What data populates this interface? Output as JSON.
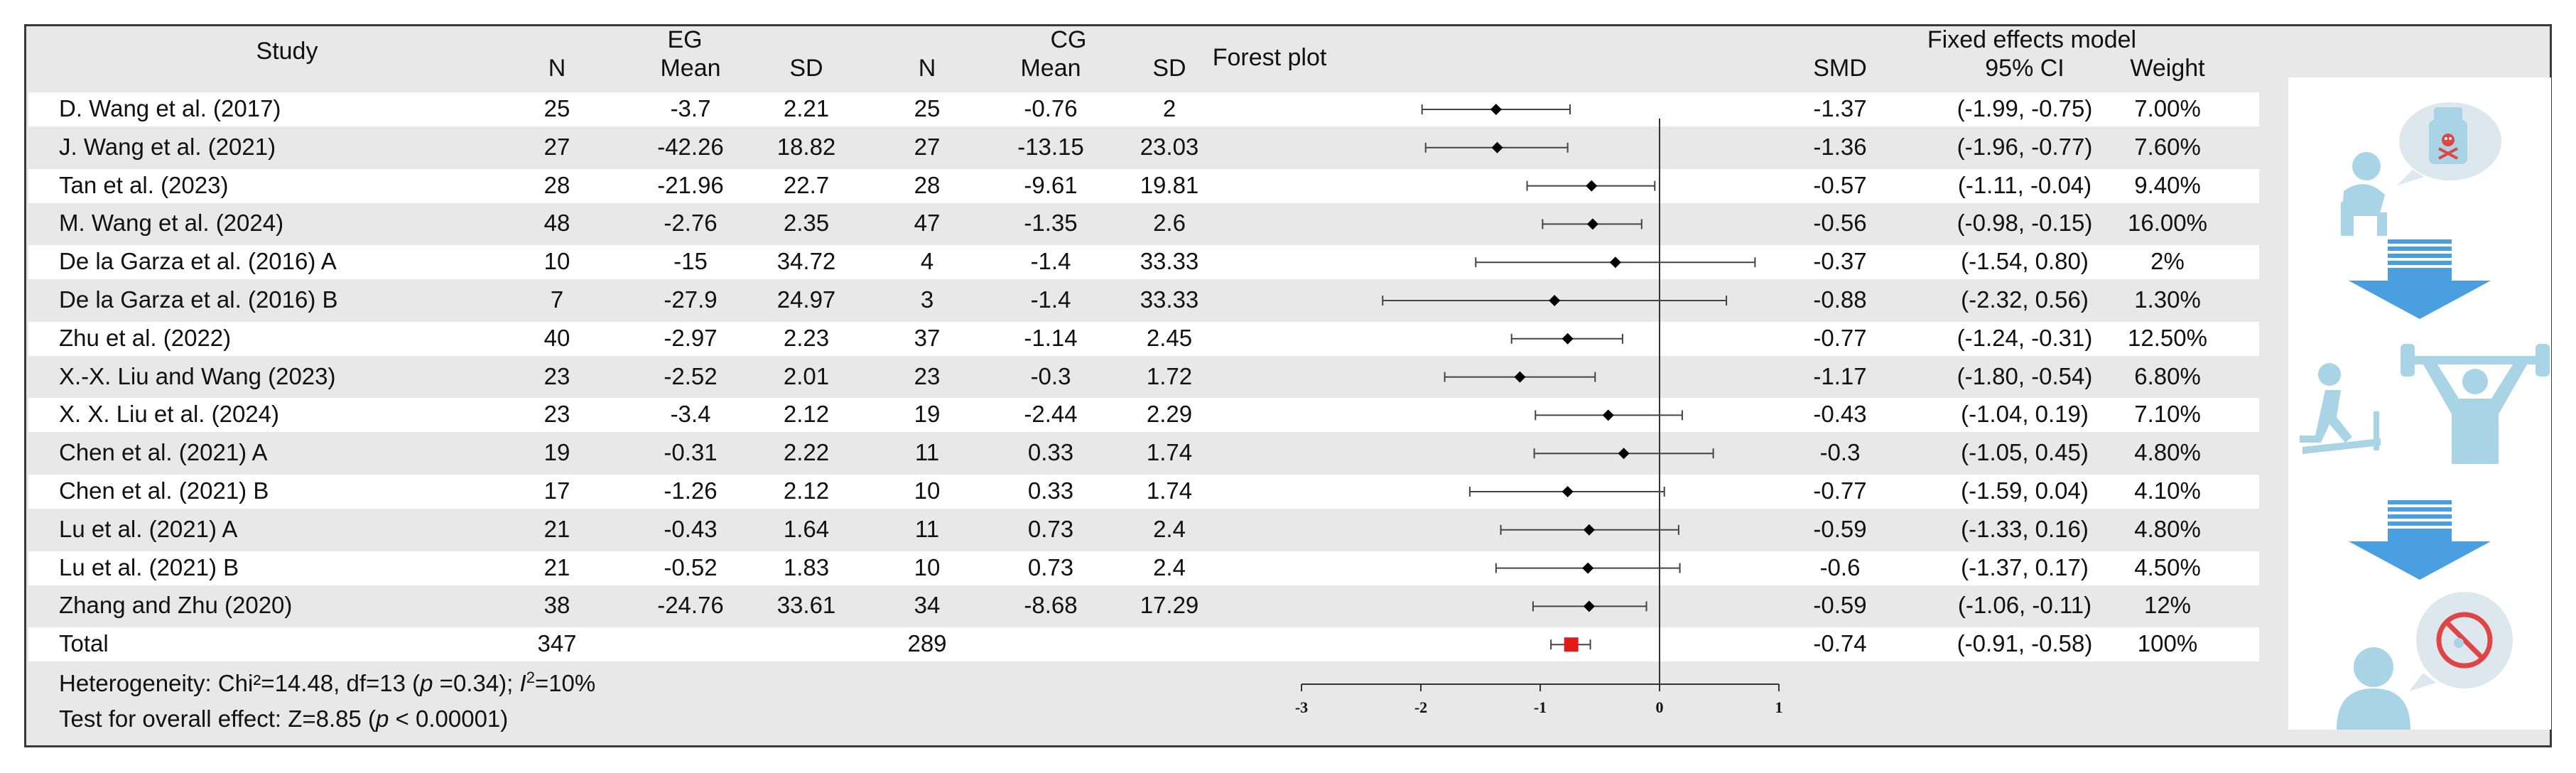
{
  "header": {
    "study": "Study",
    "eg_group": "EG",
    "cg_group": "CG",
    "n": "N",
    "mean": "Mean",
    "sd": "SD",
    "forest_title": "Forest plot",
    "model_title": "Fixed effects model",
    "smd": "SMD",
    "ci": "95% CI",
    "weight": "Weight"
  },
  "rows": [
    {
      "study": "D. Wang et al. (2017)",
      "eg_n": "25",
      "eg_mean": "-3.7",
      "eg_sd": "2.21",
      "cg_n": "25",
      "cg_mean": "-0.76",
      "cg_sd": "2",
      "smd": "-1.37",
      "ci": "(-1.99, -0.75)",
      "weight": "7.00%"
    },
    {
      "study": "J. Wang et al. (2021)",
      "eg_n": "27",
      "eg_mean": "-42.26",
      "eg_sd": "18.82",
      "cg_n": "27",
      "cg_mean": "-13.15",
      "cg_sd": "23.03",
      "smd": "-1.36",
      "ci": "(-1.96, -0.77)",
      "weight": "7.60%"
    },
    {
      "study": "Tan et al. (2023)",
      "eg_n": "28",
      "eg_mean": "-21.96",
      "eg_sd": "22.7",
      "cg_n": "28",
      "cg_mean": "-9.61",
      "cg_sd": "19.81",
      "smd": "-0.57",
      "ci": "(-1.11, -0.04)",
      "weight": "9.40%"
    },
    {
      "study": "M. Wang et al. (2024)",
      "eg_n": "48",
      "eg_mean": "-2.76",
      "eg_sd": "2.35",
      "cg_n": "47",
      "cg_mean": "-1.35",
      "cg_sd": "2.6",
      "smd": "-0.56",
      "ci": "(-0.98, -0.15)",
      "weight": "16.00%"
    },
    {
      "study": "De la Garza et al. (2016) A",
      "eg_n": "10",
      "eg_mean": "-15",
      "eg_sd": "34.72",
      "cg_n": "4",
      "cg_mean": "-1.4",
      "cg_sd": "33.33",
      "smd": "-0.37",
      "ci": "(-1.54, 0.80)",
      "weight": "2%"
    },
    {
      "study": "De la Garza et al. (2016) B",
      "eg_n": "7",
      "eg_mean": "-27.9",
      "eg_sd": "24.97",
      "cg_n": "3",
      "cg_mean": "-1.4",
      "cg_sd": "33.33",
      "smd": "-0.88",
      "ci": "(-2.32, 0.56)",
      "weight": "1.30%"
    },
    {
      "study": "Zhu et al. (2022)",
      "eg_n": "40",
      "eg_mean": "-2.97",
      "eg_sd": "2.23",
      "cg_n": "37",
      "cg_mean": "-1.14",
      "cg_sd": "2.45",
      "smd": "-0.77",
      "ci": "(-1.24, -0.31)",
      "weight": "12.50%"
    },
    {
      "study": "X.-X. Liu and Wang (2023)",
      "eg_n": "23",
      "eg_mean": "-2.52",
      "eg_sd": "2.01",
      "cg_n": "23",
      "cg_mean": "-0.3",
      "cg_sd": "1.72",
      "smd": "-1.17",
      "ci": "(-1.80, -0.54)",
      "weight": "6.80%"
    },
    {
      "study": "X. X. Liu et al. (2024)",
      "eg_n": "23",
      "eg_mean": "-3.4",
      "eg_sd": "2.12",
      "cg_n": "19",
      "cg_mean": "-2.44",
      "cg_sd": "2.29",
      "smd": "-0.43",
      "ci": "(-1.04, 0.19)",
      "weight": "7.10%"
    },
    {
      "study": "Chen et al. (2021) A",
      "eg_n": "19",
      "eg_mean": "-0.31",
      "eg_sd": "2.22",
      "cg_n": "11",
      "cg_mean": "0.33",
      "cg_sd": "1.74",
      "smd": "-0.3",
      "ci": "(-1.05, 0.45)",
      "weight": "4.80%"
    },
    {
      "study": "Chen et al. (2021) B",
      "eg_n": "17",
      "eg_mean": "-1.26",
      "eg_sd": "2.12",
      "cg_n": "10",
      "cg_mean": "0.33",
      "cg_sd": "1.74",
      "smd": "-0.77",
      "ci": "(-1.59, 0.04)",
      "weight": "4.10%"
    },
    {
      "study": "Lu et al. (2021) A",
      "eg_n": "21",
      "eg_mean": "-0.43",
      "eg_sd": "1.64",
      "cg_n": "11",
      "cg_mean": "0.73",
      "cg_sd": "2.4",
      "smd": "-0.59",
      "ci": "(-1.33, 0.16)",
      "weight": "4.80%"
    },
    {
      "study": "Lu et al. (2021) B",
      "eg_n": "21",
      "eg_mean": "-0.52",
      "eg_sd": "1.83",
      "cg_n": "10",
      "cg_mean": "0.73",
      "cg_sd": "2.4",
      "smd": "-0.6",
      "ci": "(-1.37, 0.17)",
      "weight": "4.50%"
    },
    {
      "study": "Zhang and Zhu (2020)",
      "eg_n": "38",
      "eg_mean": "-24.76",
      "eg_sd": "33.61",
      "cg_n": "34",
      "cg_mean": "-8.68",
      "cg_sd": "17.29",
      "smd": "-0.59",
      "ci": "(-1.06, -0.11)",
      "weight": "12%"
    }
  ],
  "total": {
    "study": "Total",
    "eg_n": "347",
    "cg_n": "289",
    "smd": "-0.74",
    "ci": "(-0.91, -0.58)",
    "weight": "100%"
  },
  "footer": {
    "heterogeneity_prefix": "Heterogeneity: Chi²=14.48, df=13 (",
    "p_letter": "p",
    "heterogeneity_p": " =0.34); ",
    "i_letter": "I",
    "i_sup": "2",
    "heterogeneity_i2": "=10%",
    "overall_prefix": "Test for overall effect: Z=8.85 (",
    "overall_p": " < 0.00001)"
  },
  "chart_data": {
    "type": "forest",
    "title": "Forest plot",
    "xlim": [
      -3,
      1
    ],
    "xticks": [
      -3,
      -2,
      -1,
      0,
      1
    ],
    "reference_line": 0,
    "studies": [
      {
        "smd": -1.37,
        "lo": -1.99,
        "hi": -0.75
      },
      {
        "smd": -1.36,
        "lo": -1.96,
        "hi": -0.77
      },
      {
        "smd": -0.57,
        "lo": -1.11,
        "hi": -0.04
      },
      {
        "smd": -0.56,
        "lo": -0.98,
        "hi": -0.15
      },
      {
        "smd": -0.37,
        "lo": -1.54,
        "hi": 0.8
      },
      {
        "smd": -0.88,
        "lo": -2.32,
        "hi": 0.56
      },
      {
        "smd": -0.77,
        "lo": -1.24,
        "hi": -0.31
      },
      {
        "smd": -1.17,
        "lo": -1.8,
        "hi": -0.54
      },
      {
        "smd": -0.43,
        "lo": -1.04,
        "hi": 0.19
      },
      {
        "smd": -0.3,
        "lo": -1.05,
        "hi": 0.45
      },
      {
        "smd": -0.77,
        "lo": -1.59,
        "hi": 0.04
      },
      {
        "smd": -0.59,
        "lo": -1.33,
        "hi": 0.16
      },
      {
        "smd": -0.6,
        "lo": -1.37,
        "hi": 0.17
      },
      {
        "smd": -0.59,
        "lo": -1.06,
        "hi": -0.11
      }
    ],
    "pooled": {
      "smd": -0.74,
      "lo": -0.91,
      "hi": -0.58
    },
    "colors": {
      "study_marker": "#000000",
      "pooled_marker": "#e21a1a",
      "line": "#333333"
    }
  },
  "illustration": {
    "colors": {
      "light_blue": "#a8d4e6",
      "arrow_blue": "#4a9fe0",
      "no_sign_red": "#e04545"
    }
  }
}
